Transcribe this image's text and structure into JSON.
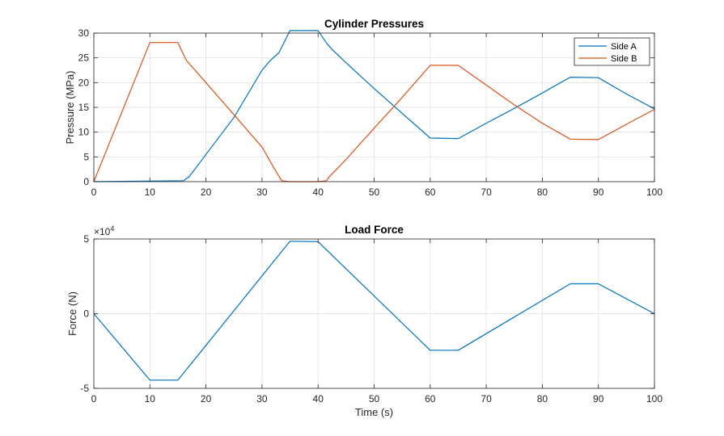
{
  "chart_data": [
    {
      "type": "line",
      "title": "Cylinder Pressures",
      "xlabel": "",
      "ylabel": "Pressure (MPa)",
      "xlim": [
        0,
        100
      ],
      "ylim": [
        0,
        30
      ],
      "xticks": [
        0,
        10,
        20,
        30,
        40,
        50,
        60,
        70,
        80,
        90,
        100
      ],
      "yticks": [
        0,
        5,
        10,
        15,
        20,
        25,
        30
      ],
      "xtick_labels": [
        "0",
        "10",
        "20",
        "30",
        "40",
        "50",
        "60",
        "70",
        "80",
        "90",
        "100"
      ],
      "ytick_labels": [
        "0",
        "5",
        "10",
        "15",
        "20",
        "25",
        "30"
      ],
      "grid": true,
      "legend": "top-right",
      "series": [
        {
          "name": "Side A",
          "color": "#0072bd",
          "x": [
            0,
            16,
            17,
            20,
            25,
            30,
            31.5,
            33,
            35,
            36,
            40,
            41.5,
            42.5,
            45,
            50,
            55,
            60,
            65,
            70,
            75,
            80,
            85,
            90,
            95,
            100
          ],
          "y": [
            0,
            0.2,
            1,
            5.5,
            13,
            22.5,
            24.5,
            26,
            30.5,
            30.5,
            30.5,
            28,
            26.7,
            24,
            18.8,
            13.8,
            8.8,
            8.7,
            11.8,
            14.8,
            17.9,
            21.1,
            21,
            17.7,
            14.7
          ]
        },
        {
          "name": "Side B",
          "color": "#d95319",
          "x": [
            0,
            10,
            15,
            16.5,
            20,
            25,
            30,
            32,
            33.5,
            35,
            40,
            41.5,
            42,
            45,
            50,
            55,
            60,
            65,
            70,
            75,
            80,
            85,
            90,
            95,
            100
          ],
          "y": [
            0,
            28.1,
            28.1,
            24.5,
            20,
            13.5,
            7,
            3,
            0.2,
            0,
            0,
            0.2,
            1,
            4.5,
            10.8,
            17,
            23.5,
            23.5,
            19.5,
            15.5,
            11.8,
            8.6,
            8.5,
            11.6,
            14.6
          ]
        }
      ]
    },
    {
      "type": "line",
      "title": "Load Force",
      "xlabel": "Time (s)",
      "ylabel": "Force (N)",
      "xlim": [
        0,
        100
      ],
      "ylim": [
        -5,
        5
      ],
      "y_multiplier_base": "×10",
      "y_multiplier_exp": "4",
      "xticks": [
        0,
        10,
        20,
        30,
        40,
        50,
        60,
        70,
        80,
        90,
        100
      ],
      "yticks": [
        -5,
        0,
        5
      ],
      "xtick_labels": [
        "0",
        "10",
        "20",
        "30",
        "40",
        "50",
        "60",
        "70",
        "80",
        "90",
        "100"
      ],
      "ytick_labels": [
        "-5",
        "0",
        "5"
      ],
      "grid": true,
      "series": [
        {
          "name": "Load Force",
          "color": "#0072bd",
          "x": [
            0,
            10,
            15,
            35,
            40,
            60,
            65,
            85,
            90,
            100
          ],
          "y": [
            0,
            -4.45,
            -4.45,
            4.85,
            4.82,
            -2.45,
            -2.45,
            2,
            2,
            0
          ]
        }
      ]
    }
  ]
}
